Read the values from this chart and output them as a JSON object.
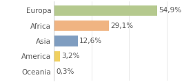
{
  "categories": [
    "Europa",
    "Africa",
    "Asia",
    "America",
    "Oceania"
  ],
  "values": [
    54.9,
    29.1,
    12.6,
    3.2,
    0.3
  ],
  "labels": [
    "54,9%",
    "29,1%",
    "12,6%",
    "3,2%",
    "0,3%"
  ],
  "bar_colors": [
    "#b5c98e",
    "#f0b482",
    "#7f9dc0",
    "#f0d060",
    "#e8a0a0"
  ],
  "background_color": "#ffffff",
  "xlim": [
    0,
    72
  ],
  "bar_height": 0.68,
  "label_fontsize": 7.5,
  "tick_fontsize": 7.5,
  "figsize": [
    2.8,
    1.2
  ],
  "dpi": 100
}
